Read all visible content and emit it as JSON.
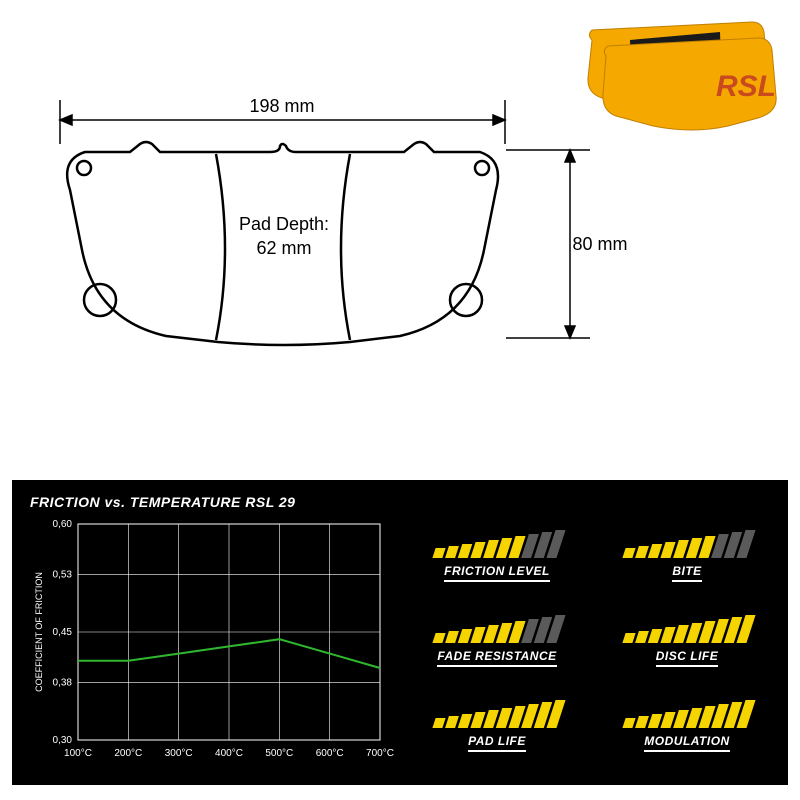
{
  "product_photo": {
    "pad_color": "#f5a800",
    "friction_color": "#1a1a1a",
    "brand_text": "RSL",
    "brand_color": "#c84a1e"
  },
  "dimensions": {
    "width_label": "198 mm",
    "height_label": "80 mm",
    "depth_label_1": "Pad Depth:",
    "depth_label_2": "62 mm",
    "label_fontsize": 18,
    "stroke_color": "#000000",
    "stroke_width": 2
  },
  "dashboard": {
    "background": "#000000",
    "accent": "#f5d400",
    "inactive": "#5a5a5a",
    "chart": {
      "title": "FRICTION vs. TEMPERATURE RSL 29",
      "title_fontsize": 14,
      "yaxis_label": "COEFFICIENT OF FRICTION",
      "ylim": [
        0.3,
        0.6
      ],
      "yticks": [
        "0,30",
        "0,38",
        "0,45",
        "0,53",
        "0,60"
      ],
      "xticks": [
        "100°C",
        "200°C",
        "300°C",
        "400°C",
        "500°C",
        "600°C",
        "700°C"
      ],
      "tick_fontsize": 10,
      "axis_label_fontsize": 9,
      "grid_color": "#ffffff",
      "line_color": "#2fb82f",
      "line_width": 2,
      "points": [
        {
          "x": 100,
          "y": 0.41
        },
        {
          "x": 200,
          "y": 0.41
        },
        {
          "x": 300,
          "y": 0.42
        },
        {
          "x": 400,
          "y": 0.43
        },
        {
          "x": 500,
          "y": 0.44
        },
        {
          "x": 600,
          "y": 0.42
        },
        {
          "x": 700,
          "y": 0.4
        }
      ]
    },
    "ratings": [
      {
        "label": "FRICTION LEVEL",
        "value": 7,
        "max": 10
      },
      {
        "label": "BITE",
        "value": 7,
        "max": 10
      },
      {
        "label": "FADE RESISTANCE",
        "value": 7,
        "max": 10
      },
      {
        "label": "DISC LIFE",
        "value": 10,
        "max": 10
      },
      {
        "label": "PAD LIFE",
        "value": 10,
        "max": 10
      },
      {
        "label": "MODULATION",
        "value": 10,
        "max": 10
      }
    ],
    "bar_heights": [
      10,
      12,
      14,
      16,
      18,
      20,
      22,
      24,
      26,
      28
    ]
  }
}
